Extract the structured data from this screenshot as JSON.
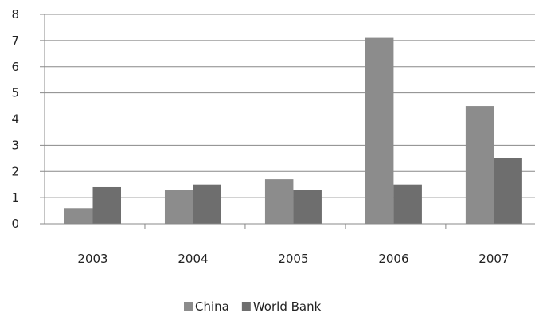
{
  "chart_data": {
    "type": "bar",
    "categories": [
      "2003",
      "2004",
      "2005",
      "2006",
      "2007"
    ],
    "series": [
      {
        "name": "China",
        "values": [
          0.6,
          1.3,
          1.7,
          7.1,
          4.5
        ],
        "color": "#8c8c8c"
      },
      {
        "name": "World Bank",
        "values": [
          1.4,
          1.5,
          1.3,
          1.5,
          2.5
        ],
        "color": "#6e6e6e"
      }
    ],
    "ylim": [
      0,
      8
    ],
    "yticks": [
      "0",
      "1",
      "2",
      "3",
      "4",
      "5",
      "6",
      "7",
      "8"
    ],
    "grid": true,
    "legend_position": "bottom"
  }
}
